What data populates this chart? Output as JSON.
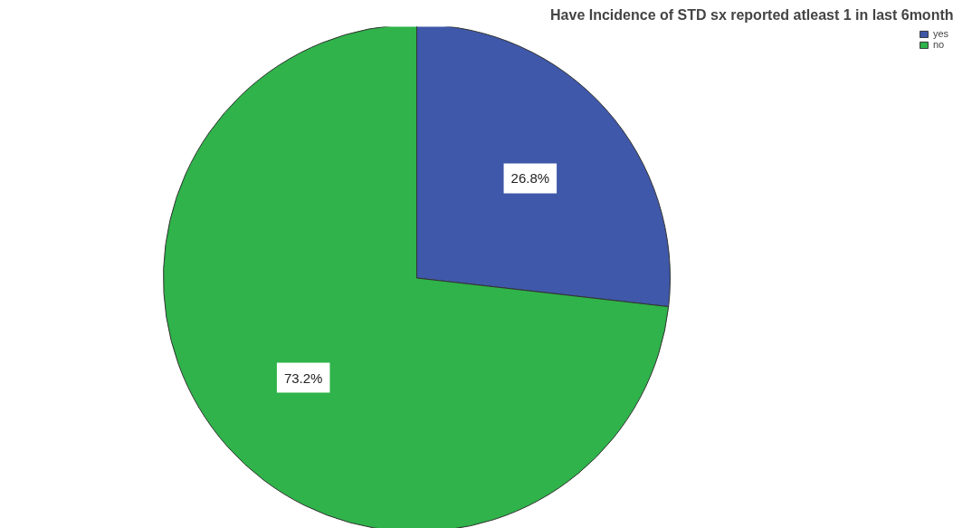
{
  "chart_data": {
    "type": "pie",
    "title": "Have Incidence of STD sx reported atleast 1 in last 6month",
    "categories": [
      "yes",
      "no"
    ],
    "values": [
      26.8,
      73.2
    ],
    "colors": [
      "#3f58a9",
      "#2fb34a"
    ],
    "value_labels": [
      "26.8%",
      "73.2%"
    ],
    "legend": "top right"
  }
}
